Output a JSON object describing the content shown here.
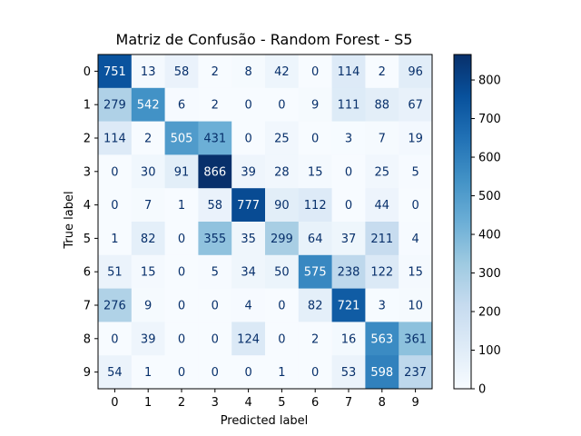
{
  "chart_data": {
    "type": "heatmap",
    "title": "Matriz de Confusão - Random Forest - S5",
    "xlabel": "Predicted label",
    "ylabel": "True label",
    "x_categories": [
      "0",
      "1",
      "2",
      "3",
      "4",
      "5",
      "6",
      "7",
      "8",
      "9"
    ],
    "y_categories": [
      "0",
      "1",
      "2",
      "3",
      "4",
      "5",
      "6",
      "7",
      "8",
      "9"
    ],
    "values": [
      [
        751,
        13,
        58,
        2,
        8,
        42,
        0,
        114,
        2,
        96
      ],
      [
        279,
        542,
        6,
        2,
        0,
        0,
        9,
        111,
        88,
        67
      ],
      [
        114,
        2,
        505,
        431,
        0,
        25,
        0,
        3,
        7,
        19
      ],
      [
        0,
        30,
        91,
        866,
        39,
        28,
        15,
        0,
        25,
        5
      ],
      [
        0,
        7,
        1,
        58,
        777,
        90,
        112,
        0,
        44,
        0
      ],
      [
        1,
        82,
        0,
        355,
        35,
        299,
        64,
        37,
        211,
        4
      ],
      [
        51,
        15,
        0,
        5,
        34,
        50,
        575,
        238,
        122,
        15
      ],
      [
        276,
        9,
        0,
        0,
        4,
        0,
        82,
        721,
        3,
        10
      ],
      [
        0,
        39,
        0,
        0,
        124,
        0,
        2,
        16,
        563,
        361
      ],
      [
        54,
        1,
        0,
        0,
        0,
        1,
        0,
        53,
        598,
        237
      ]
    ],
    "colormap": "Blues",
    "colorbar": {
      "vmin": 0,
      "vmax": 866,
      "ticks": [
        "0",
        "100",
        "200",
        "300",
        "400",
        "500",
        "600",
        "700",
        "800"
      ]
    }
  }
}
